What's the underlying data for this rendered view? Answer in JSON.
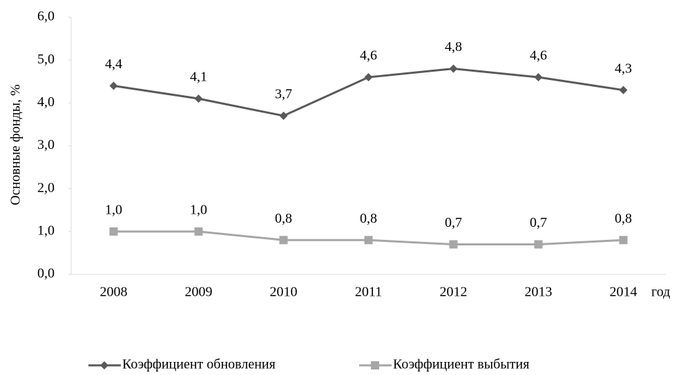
{
  "chart_data": {
    "type": "line",
    "y_label": "Основные фонды, %",
    "x_label": "год",
    "categories": [
      "2008",
      "2009",
      "2010",
      "2011",
      "2012",
      "2013",
      "2014"
    ],
    "series": [
      {
        "name": "Коэффициент обновления",
        "color": "#595959",
        "marker": "diamond",
        "values": [
          4.4,
          4.1,
          3.7,
          4.6,
          4.8,
          4.6,
          4.3
        ],
        "value_labels": [
          "4,4",
          "4,1",
          "3,7",
          "4,6",
          "4,8",
          "4,6",
          "4,3"
        ]
      },
      {
        "name": "Коэффициент выбытия",
        "color": "#a6a6a6",
        "marker": "square",
        "values": [
          1.0,
          1.0,
          0.8,
          0.8,
          0.7,
          0.7,
          0.8
        ],
        "value_labels": [
          "1,0",
          "1,0",
          "0,8",
          "0,8",
          "0,7",
          "0,7",
          "0,8"
        ]
      }
    ],
    "ylim": [
      0,
      6
    ],
    "yticks": [
      {
        "value": 0,
        "label": "0,0"
      },
      {
        "value": 1,
        "label": "1,0"
      },
      {
        "value": 2,
        "label": "2,0"
      },
      {
        "value": 3,
        "label": "3,0"
      },
      {
        "value": 4,
        "label": "4,0"
      },
      {
        "value": 5,
        "label": "5,0"
      },
      {
        "value": 6,
        "label": "6,0"
      }
    ],
    "grid": false,
    "legend": "bottom"
  }
}
